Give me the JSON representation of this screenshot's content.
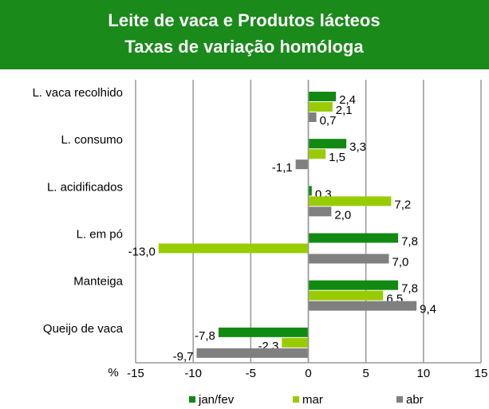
{
  "chart_data": {
    "type": "hbar",
    "title": "Leite de vaca e Produtos lácteos",
    "subtitle": "Taxas de variação homóloga",
    "x_label": "%",
    "categories": [
      "L. vaca recolhido",
      "L. consumo",
      "L. acidificados",
      "L. em pó",
      "Manteiga",
      "Queijo de vaca"
    ],
    "series": [
      {
        "name": "jan/fev",
        "color": "#118a11",
        "values": [
          2.4,
          3.3,
          0.3,
          7.8,
          7.8,
          -7.8
        ],
        "value_labels": [
          "2,4",
          "3,3",
          "0,3",
          "7,8",
          "7,8",
          "-7,8"
        ]
      },
      {
        "name": "mar",
        "color": "#99cc00",
        "values": [
          2.1,
          1.5,
          7.2,
          -13.0,
          6.5,
          -2.3
        ],
        "value_labels": [
          "2,1",
          "1,5",
          "7,2",
          "-13,0",
          "6,5",
          "-2,3"
        ]
      },
      {
        "name": "abr",
        "color": "#808080",
        "values": [
          0.7,
          -1.1,
          2.0,
          7.0,
          9.4,
          -9.7
        ],
        "value_labels": [
          "0,7",
          "-1,1",
          "2,0",
          "7,0",
          "9,4",
          "-9,7"
        ]
      }
    ],
    "xlim": [
      -15,
      15
    ],
    "xticks": [
      -15,
      -10,
      -5,
      0,
      5,
      10,
      15
    ],
    "grid": true,
    "legend": "bottom"
  }
}
